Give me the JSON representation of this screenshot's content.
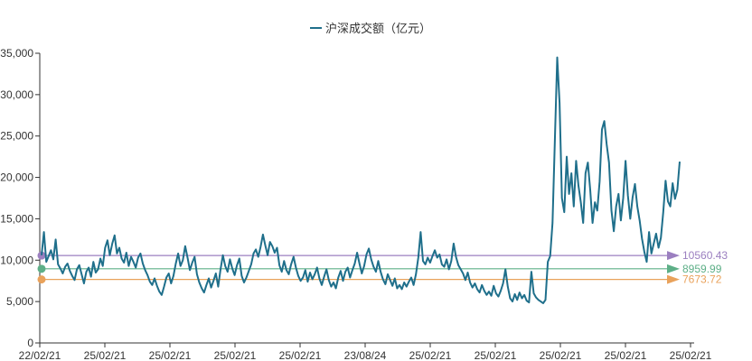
{
  "legend": {
    "label": "沪深成交额（亿元）"
  },
  "chart_data": {
    "type": "line",
    "title": "",
    "legend": [
      "沪深成交额（亿元）"
    ],
    "xlabel": "",
    "ylabel": "",
    "ylim": [
      0,
      35000
    ],
    "y_ticks": [
      "0",
      "5,000",
      "10,000",
      "15,000",
      "20,000",
      "25,000",
      "30,000",
      "35,000"
    ],
    "x_ticks": [
      "22/02/21",
      "25/02/21",
      "25/02/21",
      "25/02/21",
      "25/02/21",
      "23/08/24",
      "25/02/21",
      "25/02/21",
      "25/02/21",
      "25/02/21",
      "25/02/21"
    ],
    "grid": false,
    "series": [
      {
        "name": "沪深成交额（亿元）",
        "color": "#1f6f8b",
        "values": [
          10600,
          13400,
          9800,
          10500,
          11200,
          10100,
          12500,
          9500,
          9000,
          8400,
          9200,
          9600,
          8700,
          8100,
          7600,
          8900,
          9400,
          8300,
          7200,
          8600,
          9100,
          8000,
          9800,
          8500,
          8900,
          10200,
          9300,
          11500,
          12400,
          10600,
          12000,
          13000,
          10800,
          11500,
          10200,
          9700,
          10900,
          9300,
          10400,
          9800,
          9100,
          10300,
          10800,
          9600,
          8800,
          8200,
          7400,
          7000,
          7800,
          6900,
          6200,
          5800,
          6800,
          7900,
          8400,
          7200,
          8100,
          9600,
          10800,
          9300,
          10000,
          11700,
          10300,
          8800,
          9700,
          10400,
          8300,
          7300,
          6600,
          6100,
          7000,
          7800,
          6700,
          7500,
          8400,
          6800,
          8900,
          10600,
          9300,
          8600,
          10100,
          9000,
          8200,
          9400,
          10200,
          8100,
          7300,
          7900,
          8700,
          9500,
          10800,
          11300,
          10400,
          11600,
          13100,
          11800,
          10600,
          12200,
          11700,
          10900,
          11500,
          9400,
          8600,
          9900,
          8800,
          8300,
          9500,
          10400,
          9100,
          8100,
          7500,
          7900,
          8800,
          7400,
          8500,
          7700,
          8300,
          9100,
          7800,
          7000,
          8000,
          8900,
          7600,
          6800,
          7300,
          6600,
          7900,
          8700,
          7500,
          8600,
          9100,
          7900,
          8800,
          9600,
          10900,
          9600,
          8400,
          9300,
          10700,
          11400,
          10100,
          9200,
          8600,
          9900,
          8600,
          7700,
          7100,
          8300,
          7600,
          6900,
          7800,
          6600,
          7000,
          6500,
          7300,
          6800,
          7400,
          7900,
          7000,
          8300,
          10300,
          13400,
          9900,
          9500,
          10300,
          9700,
          10500,
          11200,
          10300,
          10700,
          9500,
          9200,
          10100,
          8900,
          9900,
          12000,
          10400,
          9400,
          8900,
          8400,
          7600,
          8500,
          7300,
          6700,
          7200,
          6500,
          6100,
          7000,
          6300,
          5800,
          6200,
          5700,
          6900,
          6000,
          5600,
          6300,
          7200,
          8900,
          6800,
          5400,
          5000,
          5900,
          5200,
          6100,
          5400,
          5800,
          5100,
          4900,
          8600,
          6000,
          5500,
          5200,
          5000,
          4800,
          5200,
          9800,
          10500,
          14500,
          24500,
          34500,
          29000,
          17500,
          15800,
          22500,
          18000,
          20500,
          16500,
          22000,
          19000,
          17000,
          14500,
          20500,
          21800,
          18500,
          14500,
          17000,
          16000,
          19500,
          25800,
          26800,
          24000,
          21800,
          16000,
          13500,
          16500,
          18000,
          14800,
          17500,
          22000,
          17800,
          15000,
          17600,
          19200,
          16500,
          14800,
          12600,
          11000,
          9800,
          13400,
          10800,
          12000,
          13200,
          11500,
          12700,
          15800,
          19600,
          17100,
          16500,
          19300,
          17400,
          18500,
          21900
        ]
      }
    ],
    "reference_lines": [
      {
        "value": 10560.43,
        "label": "10560.43",
        "color": "#9b7fc0"
      },
      {
        "value": 8959.99,
        "label": "8959.99",
        "color": "#5daf87"
      },
      {
        "value": 7673.72,
        "label": "7673.72",
        "color": "#e9a25b"
      }
    ]
  }
}
